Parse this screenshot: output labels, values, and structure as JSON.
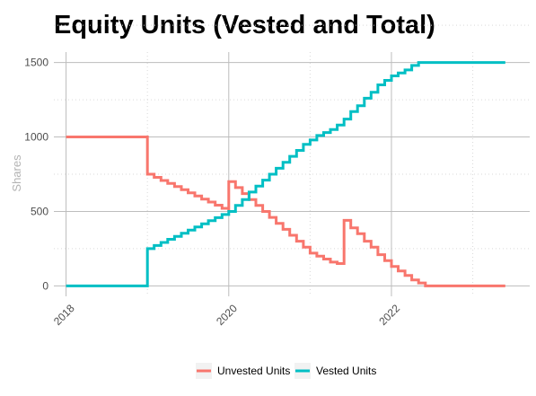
{
  "chart_data": {
    "type": "line",
    "title": "Equity Units (Vested and Total)",
    "xlabel": "",
    "ylabel": "Shares",
    "xlim": [
      2017.85,
      2023.7
    ],
    "ylim": [
      -70,
      1570
    ],
    "x_ticks": [
      2018,
      2020,
      2022
    ],
    "x_tick_labels": [
      "2018",
      "2020",
      "2022"
    ],
    "y_ticks": [
      0,
      500,
      1000,
      1500
    ],
    "y_tick_labels": [
      "0",
      "500",
      "1000",
      "1500"
    ],
    "grid": true,
    "legend_position": "bottom",
    "series": [
      {
        "name": "Unvested Units",
        "color": "#F8766D",
        "step": true,
        "x": [
          2018.0,
          2019.0,
          2019.0,
          2019.083,
          2019.167,
          2019.25,
          2019.333,
          2019.417,
          2019.5,
          2019.583,
          2019.667,
          2019.75,
          2019.833,
          2019.917,
          2020.0,
          2020.0,
          2020.083,
          2020.167,
          2020.25,
          2020.333,
          2020.417,
          2020.5,
          2020.583,
          2020.667,
          2020.75,
          2020.833,
          2020.917,
          2021.0,
          2021.083,
          2021.167,
          2021.25,
          2021.333,
          2021.417,
          2021.417,
          2021.5,
          2021.583,
          2021.667,
          2021.75,
          2021.833,
          2021.917,
          2022.0,
          2022.083,
          2022.167,
          2022.25,
          2022.333,
          2022.417,
          2023.4
        ],
        "y": [
          1000,
          1000,
          750,
          729,
          708,
          688,
          667,
          646,
          625,
          604,
          583,
          563,
          542,
          521,
          500,
          700,
          660,
          620,
          580,
          540,
          500,
          460,
          420,
          380,
          340,
          300,
          260,
          220,
          200,
          180,
          160,
          150,
          440,
          440,
          390,
          350,
          300,
          260,
          210,
          170,
          130,
          100,
          70,
          40,
          20,
          0,
          0
        ]
      },
      {
        "name": "Vested Units",
        "color": "#00BFC4",
        "step": true,
        "x": [
          2018.0,
          2019.0,
          2019.0,
          2019.083,
          2019.167,
          2019.25,
          2019.333,
          2019.417,
          2019.5,
          2019.583,
          2019.667,
          2019.75,
          2019.833,
          2019.917,
          2020.0,
          2020.083,
          2020.167,
          2020.25,
          2020.333,
          2020.417,
          2020.5,
          2020.583,
          2020.667,
          2020.75,
          2020.833,
          2020.917,
          2021.0,
          2021.083,
          2021.167,
          2021.25,
          2021.333,
          2021.417,
          2021.5,
          2021.583,
          2021.667,
          2021.75,
          2021.833,
          2021.917,
          2022.0,
          2022.083,
          2022.167,
          2022.25,
          2022.333,
          2022.417,
          2023.4
        ],
        "y": [
          0,
          0,
          250,
          271,
          292,
          313,
          333,
          354,
          375,
          396,
          417,
          438,
          458,
          479,
          500,
          540,
          580,
          630,
          670,
          710,
          750,
          790,
          830,
          870,
          910,
          950,
          980,
          1010,
          1030,
          1050,
          1080,
          1120,
          1170,
          1210,
          1260,
          1300,
          1350,
          1380,
          1410,
          1430,
          1450,
          1480,
          1500,
          1500,
          1500
        ]
      }
    ]
  }
}
